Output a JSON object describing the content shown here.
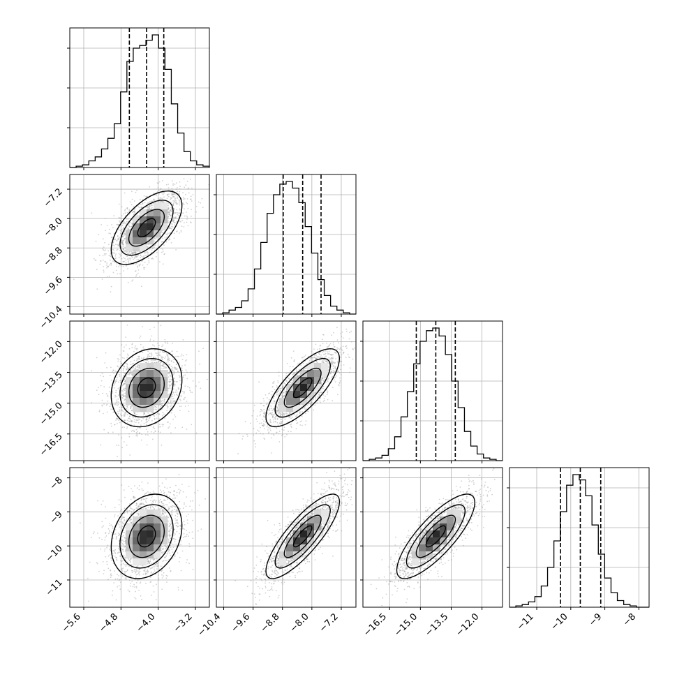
{
  "chart_data": {
    "type": "corner",
    "grid": true,
    "parameters": [
      {
        "ticks": [
          -5.6,
          -4.8,
          -4.0,
          -3.2
        ],
        "tick_labels": [
          "−5.6",
          "−4.8",
          "−4.0",
          "−3.2"
        ],
        "range": [
          -5.9,
          -2.9
        ],
        "mean": -4.25,
        "sigma": 0.38,
        "quantiles": [
          -4.62,
          -4.25,
          -3.88
        ],
        "hist": [
          0,
          1,
          2,
          5,
          8,
          14,
          22,
          33,
          57,
          80,
          90,
          92,
          96,
          100,
          90,
          74,
          48,
          26,
          12,
          5,
          2,
          1
        ]
      },
      {
        "ticks": [
          -10.4,
          -9.6,
          -8.8,
          -8.0,
          -7.2
        ],
        "tick_labels": [
          "−10.4",
          "−9.6",
          "−8.8",
          "−8.0",
          "−7.2"
        ],
        "range": [
          -10.6,
          -6.8
        ],
        "mean": -8.25,
        "sigma": 0.5,
        "quantiles": [
          -8.78,
          -8.25,
          -7.75
        ],
        "hist": [
          0,
          1,
          3,
          5,
          10,
          19,
          34,
          54,
          76,
          90,
          98,
          100,
          95,
          84,
          66,
          46,
          26,
          14,
          6,
          3,
          1,
          0
        ]
      },
      {
        "ticks": [
          -16.5,
          -15.0,
          -13.5,
          -12.0
        ],
        "tick_labels": [
          "−16.5",
          "−15.0",
          "−13.5",
          "−12.0"
        ],
        "range": [
          -17.8,
          -11.0
        ],
        "mean": -14.25,
        "sigma": 0.95,
        "quantiles": [
          -15.2,
          -14.25,
          -13.3
        ],
        "hist": [
          0,
          1,
          2,
          4,
          9,
          18,
          33,
          52,
          73,
          90,
          98,
          100,
          94,
          80,
          60,
          40,
          22,
          11,
          5,
          2,
          1,
          0
        ]
      },
      {
        "ticks": [
          -11,
          -10,
          -9,
          -8
        ],
        "tick_labels": [
          "−11",
          "−10",
          "−9",
          "−8"
        ],
        "range": [
          -11.8,
          -7.7
        ],
        "mean": -9.72,
        "sigma": 0.62,
        "quantiles": [
          -10.3,
          -9.72,
          -9.12
        ],
        "hist": [
          0,
          1,
          2,
          4,
          8,
          16,
          30,
          50,
          72,
          92,
          100,
          96,
          84,
          62,
          40,
          22,
          11,
          5,
          2,
          1,
          0,
          0
        ]
      }
    ],
    "correlations": [
      [
        0,
        1,
        0.6
      ],
      [
        0,
        2,
        0.2
      ],
      [
        1,
        2,
        0.75
      ],
      [
        0,
        3,
        0.25
      ],
      [
        1,
        3,
        0.82
      ],
      [
        2,
        3,
        0.8
      ]
    ]
  }
}
